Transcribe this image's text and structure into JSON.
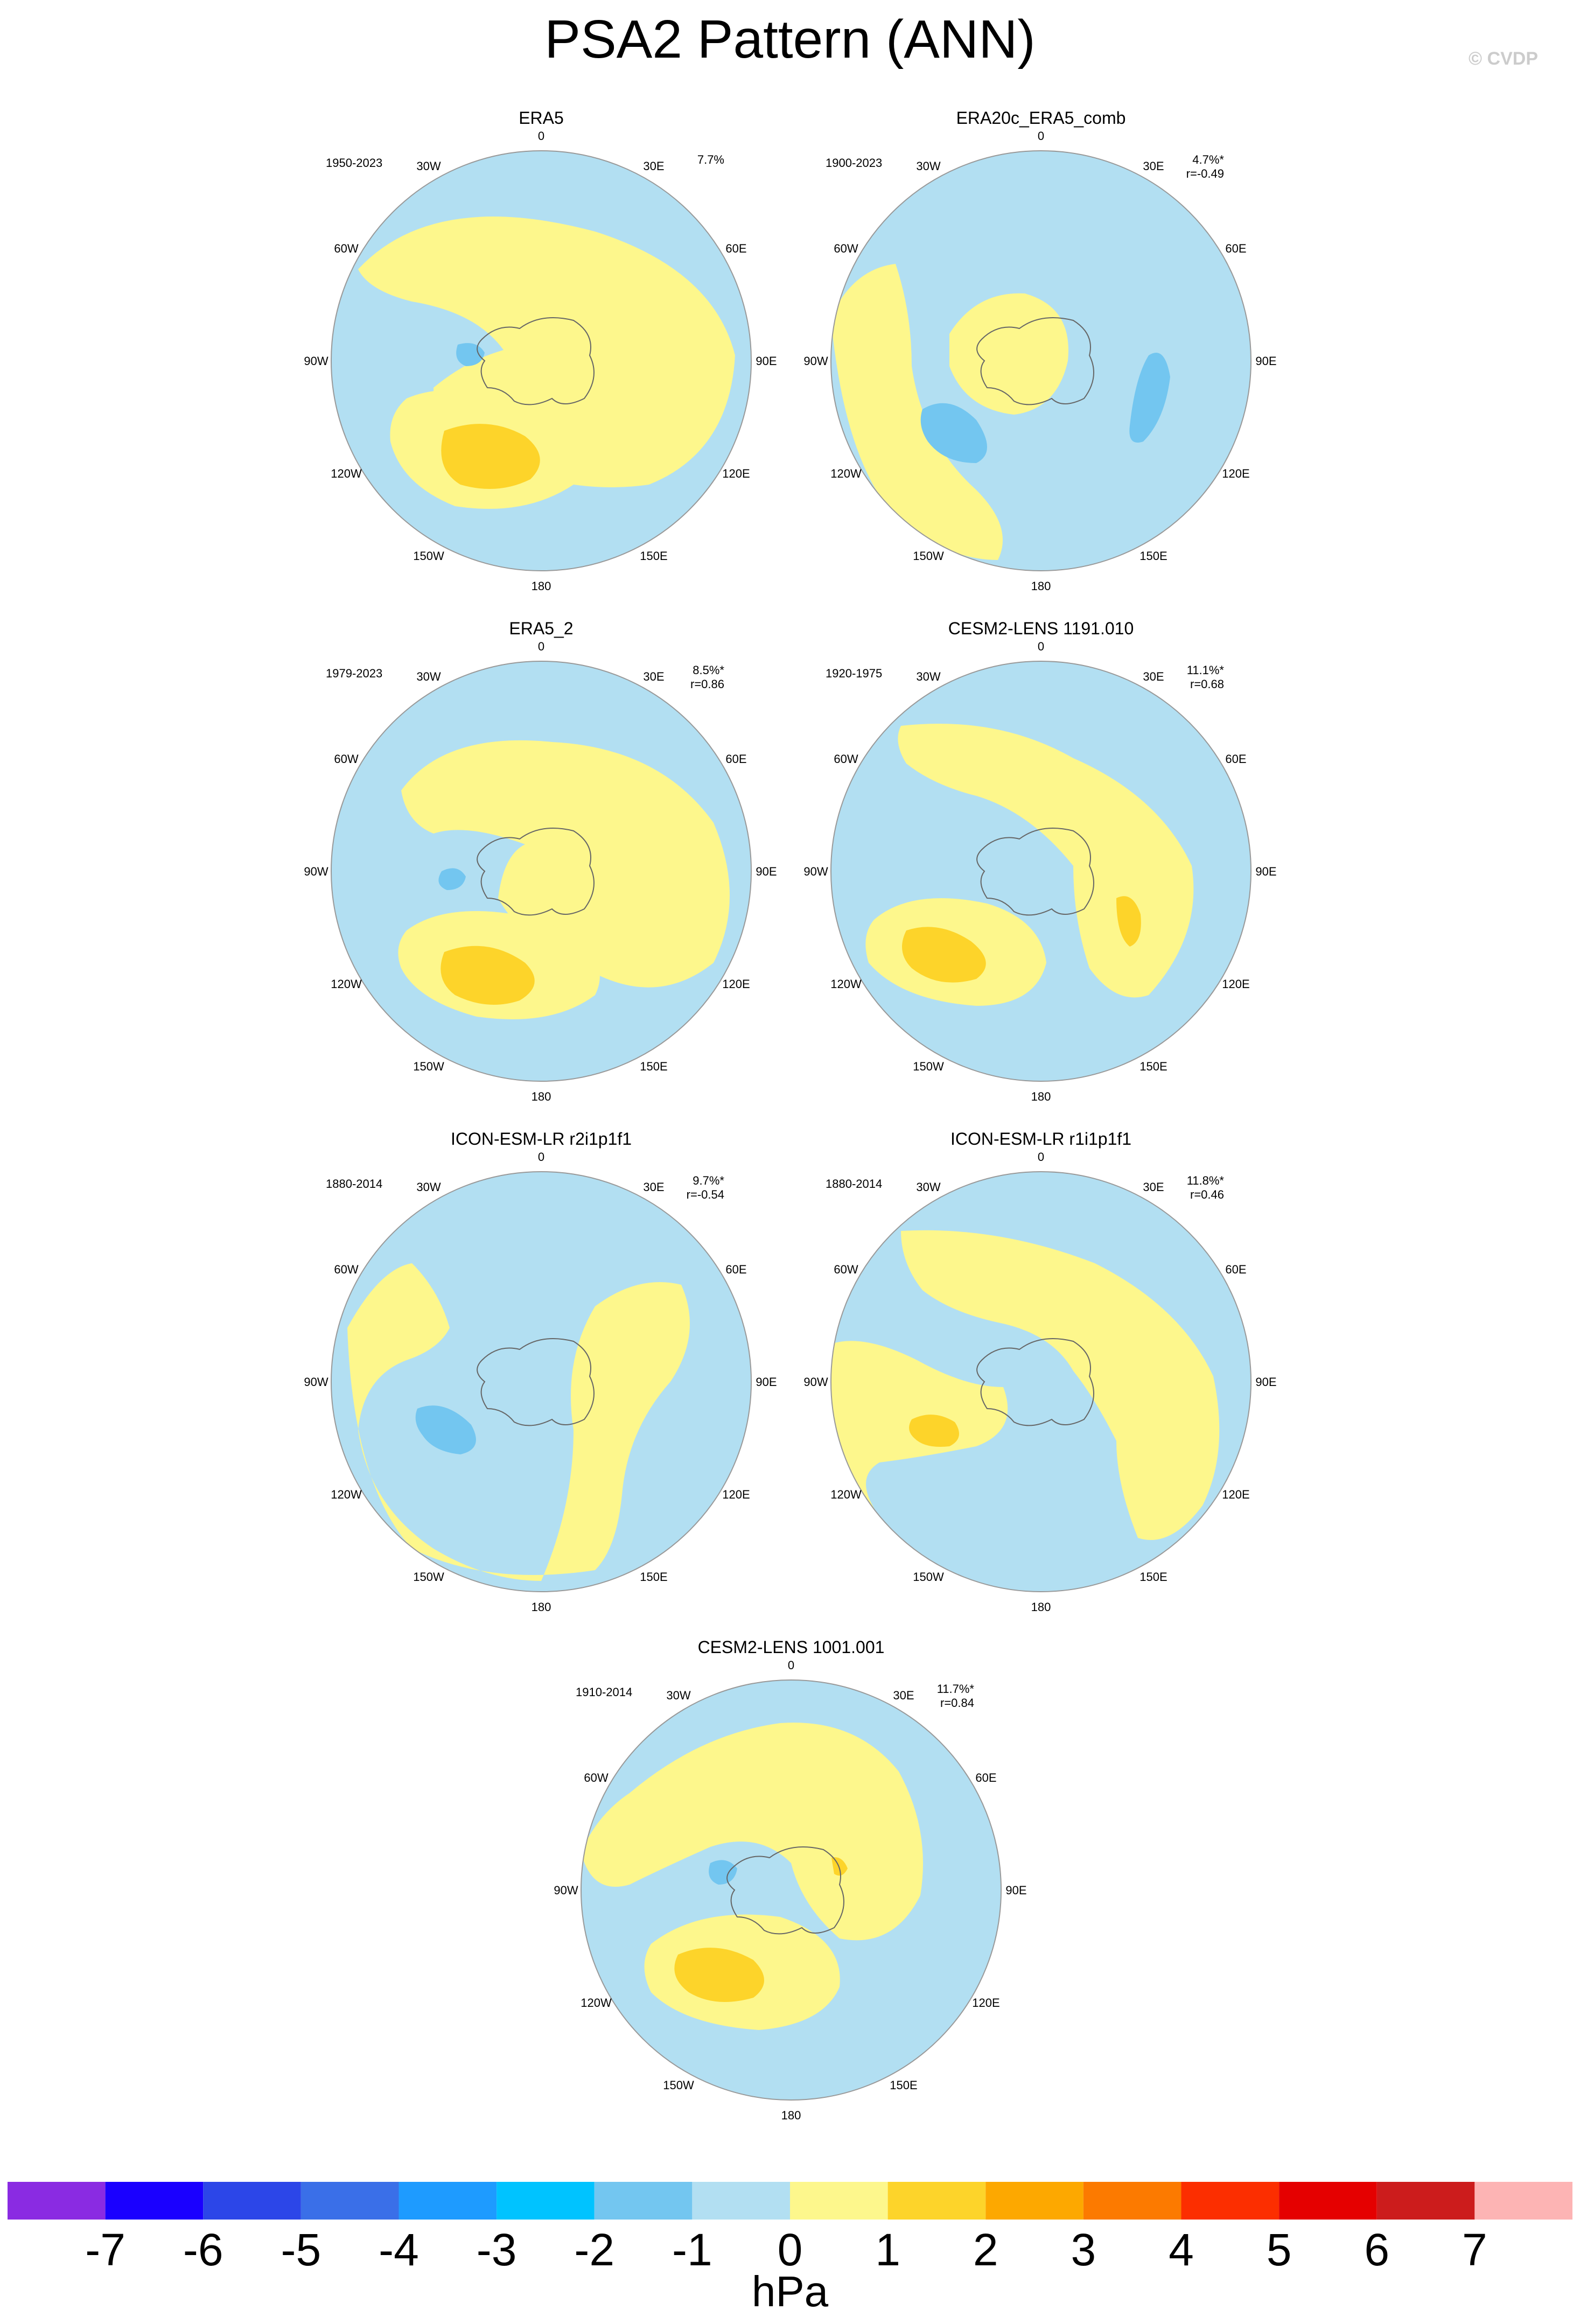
{
  "title": "PSA2 Pattern (ANN)",
  "watermark": "© CVDP",
  "lon_labels": [
    "0",
    "30E",
    "60E",
    "90E",
    "120E",
    "150E",
    "180",
    "150W",
    "120W",
    "90W",
    "60W",
    "30W"
  ],
  "colors": {
    "land_outline": "#666666",
    "levels": [
      "#8a2be2",
      "#1a00ff",
      "#2c46e8",
      "#3a6fe8",
      "#1e9bff",
      "#00c3ff",
      "#73c6f0",
      "#b2dff2",
      "#fdf78c",
      "#fdd42a",
      "#fda800",
      "#fc7a00",
      "#fc2e00",
      "#e50000",
      "#cc1c1c",
      "#fdb4b4"
    ]
  },
  "panels": [
    {
      "name": "ERA5",
      "period": "1950-2023",
      "pct": "7.7%",
      "r": ""
    },
    {
      "name": "ERA20c_ERA5_comb",
      "period": "1900-2023",
      "pct": "4.7%*",
      "r": "r=-0.49"
    },
    {
      "name": "ERA5_2",
      "period": "1979-2023",
      "pct": "8.5%*",
      "r": "r=0.86"
    },
    {
      "name": "CESM2-LENS 1191.010",
      "period": "1920-1975",
      "pct": "11.1%*",
      "r": "r=0.68"
    },
    {
      "name": "ICON-ESM-LR r2i1p1f1",
      "period": "1880-2014",
      "pct": "9.7%*",
      "r": "r=-0.54"
    },
    {
      "name": "ICON-ESM-LR r1i1p1f1",
      "period": "1880-2014",
      "pct": "11.8%*",
      "r": "r=0.46"
    },
    {
      "name": "CESM2-LENS 1001.001",
      "period": "1910-2014",
      "pct": "11.7%*",
      "r": "r=0.84"
    }
  ],
  "colorbar": {
    "labels": [
      "-7",
      "-6",
      "-5",
      "-4",
      "-3",
      "-2",
      "-1",
      "0",
      "1",
      "2",
      "3",
      "4",
      "5",
      "6",
      "7"
    ],
    "units": "hPa"
  }
}
